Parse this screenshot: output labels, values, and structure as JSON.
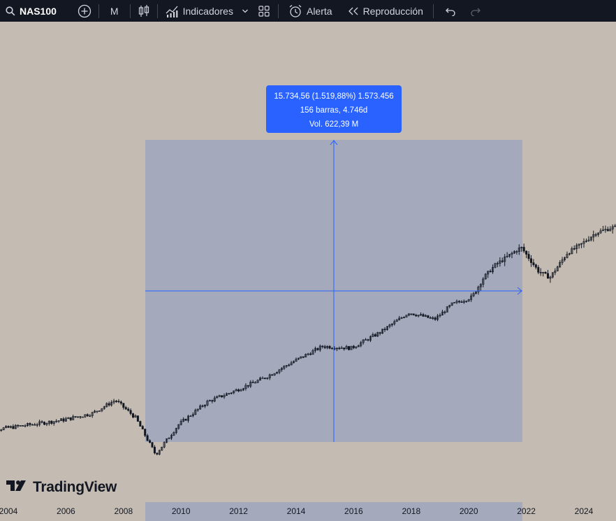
{
  "toolbar": {
    "symbol": "NAS100",
    "interval": "M",
    "indicators_label": "Indicadores",
    "alert_label": "Alerta",
    "replay_label": "Reproducción"
  },
  "measure": {
    "line1": "15.734,56 (1.519,88%) 1.573.456",
    "line2": "156 barras, 4.746d",
    "line3": "Vol. 622,39 M"
  },
  "logo_text": "TradingView",
  "colors": {
    "background": "#c4bcb2",
    "toolbar": "#131722",
    "measure_fill": "#a4a9bb",
    "measure_accent": "#2962ff",
    "candle": "#131722"
  },
  "chart_data": {
    "type": "candlestick",
    "symbol": "NAS100",
    "interval": "M",
    "x_axis_ticks": [
      "2004",
      "2006",
      "2008",
      "2010",
      "2012",
      "2014",
      "2016",
      "2018",
      "2020",
      "2022",
      "2024"
    ],
    "price_axis": "log",
    "points": [
      {
        "x": 2003.0,
        "y": 1400
      },
      {
        "x": 2004.0,
        "y": 1480
      },
      {
        "x": 2005.0,
        "y": 1560
      },
      {
        "x": 2006.0,
        "y": 1650
      },
      {
        "x": 2007.0,
        "y": 1800
      },
      {
        "x": 2007.8,
        "y": 2150
      },
      {
        "x": 2008.5,
        "y": 1700
      },
      {
        "x": 2009.2,
        "y": 1040
      },
      {
        "x": 2010.0,
        "y": 1550
      },
      {
        "x": 2011.0,
        "y": 2100
      },
      {
        "x": 2012.0,
        "y": 2450
      },
      {
        "x": 2013.0,
        "y": 2900
      },
      {
        "x": 2014.0,
        "y": 3600
      },
      {
        "x": 2015.0,
        "y": 4400
      },
      {
        "x": 2016.0,
        "y": 4300
      },
      {
        "x": 2017.0,
        "y": 5300
      },
      {
        "x": 2018.0,
        "y": 6900
      },
      {
        "x": 2018.9,
        "y": 6300
      },
      {
        "x": 2019.5,
        "y": 7700
      },
      {
        "x": 2020.2,
        "y": 8500
      },
      {
        "x": 2020.6,
        "y": 11000
      },
      {
        "x": 2021.0,
        "y": 13000
      },
      {
        "x": 2021.9,
        "y": 16500
      },
      {
        "x": 2022.5,
        "y": 12000
      },
      {
        "x": 2022.9,
        "y": 11000
      },
      {
        "x": 2023.5,
        "y": 15200
      },
      {
        "x": 2024.0,
        "y": 17200
      },
      {
        "x": 2024.5,
        "y": 20000
      },
      {
        "x": 2025.1,
        "y": 21500
      }
    ],
    "measure_range": {
      "start": 2009.2,
      "end": 2022.0,
      "change": "15.734,56 (1.519,88%) 1.573.456",
      "bars": "156 barras, 4.746d",
      "volume": "Vol. 622,39 M"
    }
  }
}
